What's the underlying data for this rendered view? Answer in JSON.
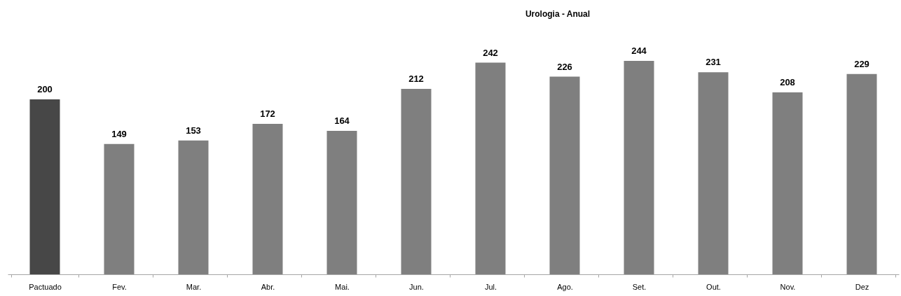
{
  "chart_data": {
    "type": "bar",
    "title": "Urologia - Anual",
    "categories": [
      "Pactuado",
      "Fev.",
      "Mar.",
      "Abr.",
      "Mai.",
      "Jun.",
      "Jul.",
      "Ago.",
      "Set.",
      "Out.",
      "Nov.",
      "Dez"
    ],
    "values": [
      200,
      149,
      153,
      172,
      164,
      212,
      242,
      226,
      244,
      231,
      208,
      229
    ],
    "colors": [
      "#474747",
      "#7f7f7f",
      "#7f7f7f",
      "#7f7f7f",
      "#7f7f7f",
      "#7f7f7f",
      "#7f7f7f",
      "#7f7f7f",
      "#7f7f7f",
      "#7f7f7f",
      "#7f7f7f",
      "#7f7f7f"
    ],
    "data_labels": true
  }
}
